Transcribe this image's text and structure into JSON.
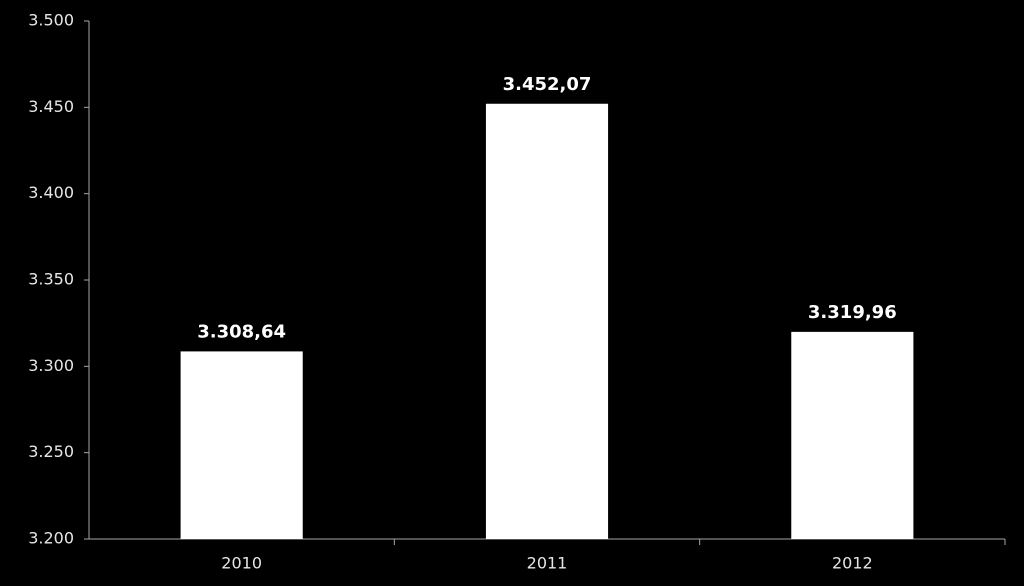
{
  "chart_data": {
    "type": "bar",
    "categories": [
      "2010",
      "2011",
      "2012"
    ],
    "values": [
      3308.64,
      3452.07,
      3319.96
    ],
    "value_labels": [
      "3.308,64",
      "3.452,07",
      "3.319,96"
    ],
    "color": "#ffffff",
    "ylim": [
      3200,
      3500
    ],
    "yticks": [
      {
        "value": 3200,
        "label": "3.200"
      },
      {
        "value": 3250,
        "label": "3.250"
      },
      {
        "value": 3300,
        "label": "3.300"
      },
      {
        "value": 3350,
        "label": "3.350"
      },
      {
        "value": 3400,
        "label": "3.400"
      },
      {
        "value": 3450,
        "label": "3.450"
      },
      {
        "value": 3500,
        "label": "3.500"
      }
    ]
  }
}
